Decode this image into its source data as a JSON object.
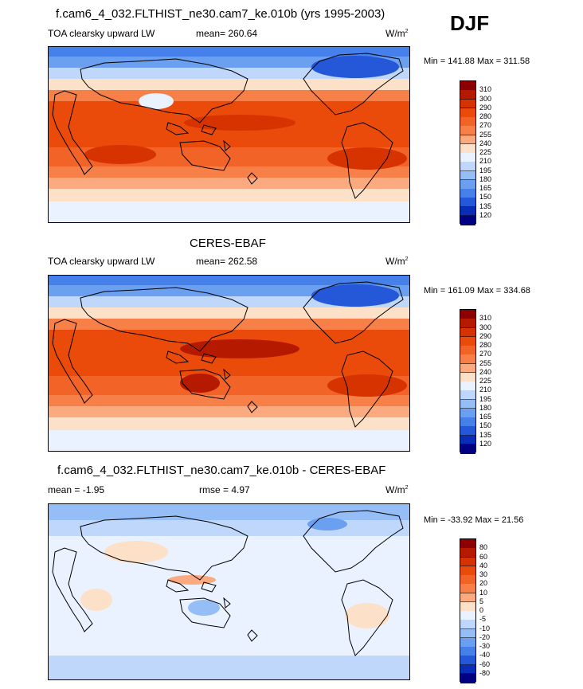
{
  "season": "DJF",
  "panels": [
    {
      "title": "f.cam6_4_032.FLTHIST_ne30.cam7_ke.010b (yrs 1995-2003)",
      "left_label": "TOA clearsky upward LW",
      "center_label": "mean= 260.64",
      "units": "W/m",
      "units_sup": "2",
      "minmax": "Min = 141.88 Max = 311.58",
      "colorbar": {
        "ticks": [
          "310",
          "300",
          "290",
          "280",
          "270",
          "255",
          "240",
          "225",
          "210",
          "195",
          "180",
          "165",
          "150",
          "135",
          "120"
        ],
        "colors": [
          "#8b0000",
          "#b51a00",
          "#d63300",
          "#ea4a0a",
          "#f26328",
          "#f77f48",
          "#fbaa80",
          "#fde0c8",
          "#eaf2ff",
          "#bfd7fb",
          "#95bdf6",
          "#6b9ff0",
          "#4680ea",
          "#2458d8",
          "#0a2db8",
          "#000080"
        ]
      }
    },
    {
      "title": "CERES-EBAF",
      "left_label": "TOA clearsky upward LW",
      "center_label": "mean= 262.58",
      "units": "W/m",
      "units_sup": "2",
      "minmax": "Min = 161.09 Max = 334.68",
      "colorbar": {
        "ticks": [
          "310",
          "300",
          "290",
          "280",
          "270",
          "255",
          "240",
          "225",
          "210",
          "195",
          "180",
          "165",
          "150",
          "135",
          "120"
        ],
        "colors": [
          "#8b0000",
          "#b51a00",
          "#d63300",
          "#ea4a0a",
          "#f26328",
          "#f77f48",
          "#fbaa80",
          "#fde0c8",
          "#eaf2ff",
          "#bfd7fb",
          "#95bdf6",
          "#6b9ff0",
          "#4680ea",
          "#2458d8",
          "#0a2db8",
          "#000080"
        ]
      }
    },
    {
      "title": "f.cam6_4_032.FLTHIST_ne30.cam7_ke.010b - CERES-EBAF",
      "left_label": "mean =  -1.95",
      "center_label": "rmse =   4.97",
      "units": "W/m",
      "units_sup": "2",
      "minmax": "Min = -33.92 Max =  21.56",
      "colorbar": {
        "ticks": [
          "80",
          "60",
          "40",
          "30",
          "20",
          "10",
          "5",
          "0",
          "-5",
          "-10",
          "-20",
          "-30",
          "-40",
          "-60",
          "-80"
        ],
        "colors": [
          "#8b0000",
          "#b51a00",
          "#d63300",
          "#ea4a0a",
          "#f26328",
          "#f77f48",
          "#fbaa80",
          "#fde0c8",
          "#eaf2ff",
          "#bfd7fb",
          "#95bdf6",
          "#6b9ff0",
          "#4680ea",
          "#2458d8",
          "#0a2db8",
          "#000080"
        ]
      }
    }
  ],
  "chart_data": [
    {
      "type": "heatmap",
      "title": "f.cam6_4_032.FLTHIST_ne30.cam7_ke.010b (yrs 1995-2003)",
      "variable": "TOA clearsky upward LW",
      "units": "W/m2",
      "mean": 260.64,
      "min": 141.88,
      "max": 311.58,
      "levels": [
        120,
        135,
        150,
        165,
        180,
        195,
        210,
        225,
        240,
        255,
        270,
        280,
        290,
        300,
        310
      ]
    },
    {
      "type": "heatmap",
      "title": "CERES-EBAF",
      "variable": "TOA clearsky upward LW",
      "units": "W/m2",
      "mean": 262.58,
      "min": 161.09,
      "max": 334.68,
      "levels": [
        120,
        135,
        150,
        165,
        180,
        195,
        210,
        225,
        240,
        255,
        270,
        280,
        290,
        300,
        310
      ]
    },
    {
      "type": "heatmap",
      "title": "f.cam6_4_032.FLTHIST_ne30.cam7_ke.010b - CERES-EBAF",
      "units": "W/m2",
      "mean": -1.95,
      "rmse": 4.97,
      "min": -33.92,
      "max": 21.56,
      "levels": [
        -80,
        -60,
        -40,
        -30,
        -20,
        -10,
        -5,
        0,
        5,
        10,
        20,
        30,
        40,
        60,
        80
      ]
    }
  ]
}
